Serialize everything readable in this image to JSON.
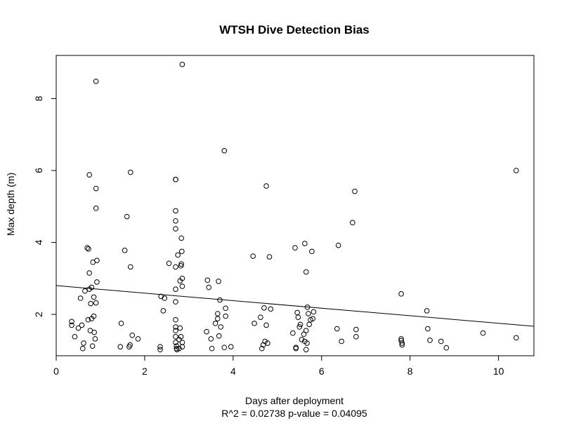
{
  "chart_data": {
    "type": "scatter",
    "title": "WTSH Dive Detection Bias",
    "xlabel": "Days after deployment",
    "subtitle": "R^2 = 0.02738  p-value = 0.04095",
    "ylabel": "Max depth (m)",
    "xlim": [
      0,
      10.8
    ],
    "ylim": [
      0.85,
      9.2
    ],
    "xticks": [
      "0",
      "2",
      "4",
      "6",
      "8",
      "10"
    ],
    "yticks": [
      "2",
      "4",
      "6",
      "8"
    ],
    "grid": false,
    "marker": "open-circle",
    "regression_line": {
      "x": [
        0,
        10.8
      ],
      "y": [
        2.8,
        1.67
      ]
    },
    "points": [
      [
        0.35,
        1.8
      ],
      [
        0.35,
        1.7
      ],
      [
        0.42,
        1.38
      ],
      [
        0.5,
        1.62
      ],
      [
        0.55,
        2.45
      ],
      [
        0.58,
        1.7
      ],
      [
        0.6,
        1.05
      ],
      [
        0.62,
        1.2
      ],
      [
        0.65,
        2.65
      ],
      [
        0.7,
        3.85
      ],
      [
        0.72,
        1.85
      ],
      [
        0.73,
        3.82
      ],
      [
        0.75,
        3.15
      ],
      [
        0.75,
        5.88
      ],
      [
        0.75,
        2.7
      ],
      [
        0.77,
        1.55
      ],
      [
        0.78,
        2.3
      ],
      [
        0.8,
        1.88
      ],
      [
        0.8,
        2.75
      ],
      [
        0.82,
        1.12
      ],
      [
        0.83,
        3.45
      ],
      [
        0.85,
        2.48
      ],
      [
        0.85,
        1.95
      ],
      [
        0.86,
        1.5
      ],
      [
        0.88,
        1.32
      ],
      [
        0.9,
        4.95
      ],
      [
        0.9,
        5.5
      ],
      [
        0.9,
        8.48
      ],
      [
        0.9,
        2.32
      ],
      [
        0.92,
        2.9
      ],
      [
        0.92,
        3.5
      ],
      [
        1.45,
        1.1
      ],
      [
        1.47,
        1.75
      ],
      [
        1.55,
        3.78
      ],
      [
        1.6,
        4.72
      ],
      [
        1.65,
        1.1
      ],
      [
        1.67,
        1.15
      ],
      [
        1.68,
        5.95
      ],
      [
        1.68,
        3.32
      ],
      [
        1.72,
        1.42
      ],
      [
        1.85,
        1.32
      ],
      [
        2.35,
        1.1
      ],
      [
        2.35,
        1.02
      ],
      [
        2.37,
        2.5
      ],
      [
        2.42,
        2.1
      ],
      [
        2.45,
        2.45
      ],
      [
        2.55,
        3.42
      ],
      [
        2.7,
        5.75
      ],
      [
        2.7,
        5.75
      ],
      [
        2.7,
        4.88
      ],
      [
        2.7,
        4.6
      ],
      [
        2.7,
        4.38
      ],
      [
        2.7,
        3.32
      ],
      [
        2.7,
        2.7
      ],
      [
        2.7,
        2.35
      ],
      [
        2.7,
        1.85
      ],
      [
        2.7,
        1.65
      ],
      [
        2.7,
        1.55
      ],
      [
        2.7,
        1.38
      ],
      [
        2.7,
        1.22
      ],
      [
        2.72,
        1.12
      ],
      [
        2.72,
        1.05
      ],
      [
        2.73,
        1.02
      ],
      [
        2.75,
        3.65
      ],
      [
        2.78,
        1.3
      ],
      [
        2.78,
        1.05
      ],
      [
        2.8,
        1.62
      ],
      [
        2.8,
        2.93
      ],
      [
        2.82,
        1.38
      ],
      [
        2.82,
        3.35
      ],
      [
        2.83,
        3.4
      ],
      [
        2.83,
        4.12
      ],
      [
        2.84,
        3.75
      ],
      [
        2.85,
        2.78
      ],
      [
        2.85,
        1.22
      ],
      [
        2.85,
        1.1
      ],
      [
        2.85,
        3.0
      ],
      [
        2.85,
        8.95
      ],
      [
        3.4,
        1.52
      ],
      [
        3.42,
        2.95
      ],
      [
        3.45,
        2.75
      ],
      [
        3.5,
        1.32
      ],
      [
        3.52,
        1.05
      ],
      [
        3.6,
        1.75
      ],
      [
        3.65,
        1.88
      ],
      [
        3.65,
        2.02
      ],
      [
        3.67,
        2.92
      ],
      [
        3.68,
        1.4
      ],
      [
        3.7,
        2.4
      ],
      [
        3.72,
        1.65
      ],
      [
        3.8,
        1.08
      ],
      [
        3.8,
        6.55
      ],
      [
        3.83,
        2.17
      ],
      [
        3.83,
        1.95
      ],
      [
        3.95,
        1.1
      ],
      [
        4.45,
        3.62
      ],
      [
        4.48,
        1.75
      ],
      [
        4.62,
        1.92
      ],
      [
        4.65,
        1.05
      ],
      [
        4.68,
        1.15
      ],
      [
        4.7,
        2.18
      ],
      [
        4.72,
        1.25
      ],
      [
        4.75,
        5.57
      ],
      [
        4.75,
        1.7
      ],
      [
        4.78,
        1.2
      ],
      [
        4.82,
        3.6
      ],
      [
        4.85,
        2.15
      ],
      [
        5.35,
        1.48
      ],
      [
        5.4,
        3.85
      ],
      [
        5.42,
        1.08
      ],
      [
        5.42,
        1.05
      ],
      [
        5.45,
        2.05
      ],
      [
        5.47,
        1.92
      ],
      [
        5.5,
        1.65
      ],
      [
        5.52,
        1.72
      ],
      [
        5.55,
        1.3
      ],
      [
        5.6,
        1.45
      ],
      [
        5.62,
        1.25
      ],
      [
        5.62,
        3.97
      ],
      [
        5.65,
        3.18
      ],
      [
        5.65,
        1.02
      ],
      [
        5.65,
        1.55
      ],
      [
        5.67,
        1.2
      ],
      [
        5.68,
        2.2
      ],
      [
        5.7,
        2.02
      ],
      [
        5.72,
        1.72
      ],
      [
        5.75,
        1.85
      ],
      [
        5.78,
        3.75
      ],
      [
        5.8,
        1.88
      ],
      [
        5.82,
        2.07
      ],
      [
        6.35,
        1.6
      ],
      [
        6.38,
        3.92
      ],
      [
        6.45,
        1.25
      ],
      [
        6.7,
        4.55
      ],
      [
        6.75,
        5.42
      ],
      [
        6.78,
        1.38
      ],
      [
        6.78,
        1.58
      ],
      [
        7.8,
        2.57
      ],
      [
        7.8,
        1.32
      ],
      [
        7.8,
        1.27
      ],
      [
        7.82,
        1.2
      ],
      [
        7.82,
        1.15
      ],
      [
        8.38,
        2.1
      ],
      [
        8.4,
        1.6
      ],
      [
        8.45,
        1.28
      ],
      [
        8.7,
        1.25
      ],
      [
        8.82,
        1.07
      ],
      [
        9.65,
        1.48
      ],
      [
        10.4,
        6.0
      ],
      [
        10.4,
        1.35
      ]
    ]
  }
}
